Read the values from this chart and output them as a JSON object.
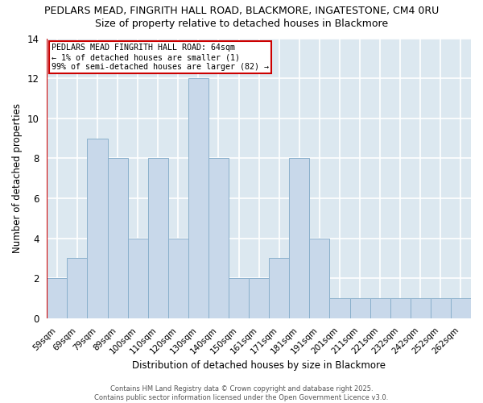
{
  "title_line1": "PEDLARS MEAD, FINGRITH HALL ROAD, BLACKMORE, INGATESTONE, CM4 0RU",
  "title_line2": "Size of property relative to detached houses in Blackmore",
  "xlabel": "Distribution of detached houses by size in Blackmore",
  "ylabel": "Number of detached properties",
  "categories": [
    "59sqm",
    "69sqm",
    "79sqm",
    "89sqm",
    "100sqm",
    "110sqm",
    "120sqm",
    "130sqm",
    "140sqm",
    "150sqm",
    "161sqm",
    "171sqm",
    "181sqm",
    "191sqm",
    "201sqm",
    "211sqm",
    "221sqm",
    "232sqm",
    "242sqm",
    "252sqm",
    "262sqm"
  ],
  "values": [
    2,
    3,
    9,
    8,
    4,
    8,
    4,
    12,
    8,
    2,
    2,
    3,
    8,
    4,
    1,
    1,
    1,
    1,
    1,
    1,
    1
  ],
  "bar_color": "#c8d8ea",
  "bar_edge_color": "#8ab0cc",
  "ylim": [
    0,
    14
  ],
  "yticks": [
    0,
    2,
    4,
    6,
    8,
    10,
    12,
    14
  ],
  "annotation_title": "PEDLARS MEAD FINGRITH HALL ROAD: 64sqm",
  "annotation_line2": "← 1% of detached houses are smaller (1)",
  "annotation_line3": "99% of semi-detached houses are larger (82) →",
  "annotation_box_color": "#ffffff",
  "annotation_border_color": "#cc0000",
  "footer_line1": "Contains HM Land Registry data © Crown copyright and database right 2025.",
  "footer_line2": "Contains public sector information licensed under the Open Government Licence v3.0.",
  "fig_background_color": "#ffffff",
  "plot_background_color": "#dce8f0",
  "grid_color": "#ffffff",
  "red_line_color": "#cc0000"
}
